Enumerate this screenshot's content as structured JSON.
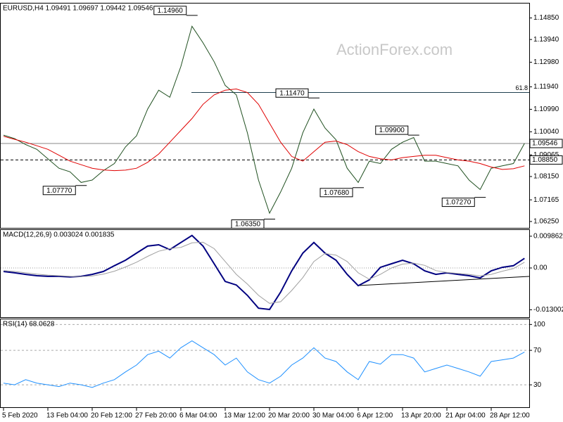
{
  "chart_data": [
    {
      "type": "line",
      "title": "EURUSD,H4  1.09491 1.09697 1.09442 1.09546",
      "watermark": "ActionForex.com",
      "ylim": [
        1.0598,
        1.1546
      ],
      "yticks": [
        {
          "value": 1.1485,
          "label": "1.14850"
        },
        {
          "value": 1.1394,
          "label": "1.13940"
        },
        {
          "value": 1.1298,
          "label": "1.12980"
        },
        {
          "value": 1.1194,
          "label": "1.11940"
        },
        {
          "value": 1.1099,
          "label": "1.10990"
        },
        {
          "value": 1.1004,
          "label": "1.10040"
        },
        1.09065,
        {
          "value": 1.0815,
          "label": "1.08150"
        },
        1.07165,
        {
          "value": 1.0625,
          "label": "1.06250"
        }
      ],
      "grid": false,
      "series": [
        {
          "color": "#1f4f1f",
          "values": [
            1.099,
            1.0975,
            1.095,
            1.093,
            1.089,
            1.085,
            1.0835,
            1.079,
            1.08,
            1.084,
            1.087,
            1.094,
            1.0987,
            1.11,
            1.118,
            1.115,
            1.128,
            1.145,
            1.138,
            1.13,
            1.12,
            1.116,
            1.1,
            1.08,
            1.066,
            1.075,
            1.085,
            1.1,
            1.11,
            1.102,
            1.097,
            1.085,
            1.079,
            1.088,
            1.087,
            1.093,
            1.096,
            1.098,
            1.088,
            1.088,
            1.087,
            1.086,
            1.08,
            1.076,
            1.085,
            1.086,
            1.087,
            1.0955
          ]
        },
        {
          "color": "#e00000",
          "values": [
            1.0985,
            1.0972,
            1.096,
            1.0945,
            1.093,
            1.0905,
            1.088,
            1.0865,
            1.085,
            1.0843,
            1.084,
            1.0842,
            1.085,
            1.0875,
            1.091,
            1.096,
            1.101,
            1.106,
            1.112,
            1.116,
            1.118,
            1.1185,
            1.117,
            1.112,
            1.104,
            1.096,
            1.09,
            1.088,
            1.092,
            1.096,
            1.0965,
            1.095,
            1.092,
            1.09,
            1.089,
            1.0885,
            1.0895,
            1.09,
            1.0905,
            1.0905,
            1.0895,
            1.0885,
            1.088,
            1.087,
            1.0855,
            1.0845,
            1.0848,
            1.086
          ]
        }
      ],
      "annotations": [
        {
          "at": 17,
          "value": 1.1496,
          "label": "1.14960"
        },
        {
          "at": 7,
          "value": 1.0777,
          "label": "1.07770"
        },
        {
          "at": 24,
          "value": 1.0635,
          "label": "1.06350"
        },
        {
          "at": 28,
          "value": 1.1147,
          "label": "1.11470"
        },
        {
          "at": 32,
          "value": 1.0768,
          "label": "1.07680"
        },
        {
          "at": 37,
          "value": 1.099,
          "label": "1.09900"
        },
        {
          "at": 43,
          "value": 1.0727,
          "label": "1.07270"
        }
      ],
      "levels": [
        {
          "value": 1.09546,
          "style": "solid"
        },
        {
          "value": 1.0885,
          "label": "1.08850",
          "style": "dashed"
        }
      ],
      "fib": {
        "level": 61.8,
        "price": 1.117
      }
    },
    {
      "type": "line",
      "title": "MACD(12,26,9) 0.003024 0.001835",
      "ylim": [
        -0.0153,
        0.0118
      ],
      "yticks": [
        0.009862,
        {
          "value": 0,
          "label": "0.00"
        },
        -0.013002
      ],
      "zero_line": true,
      "series": [
        {
          "color": "#000080",
          "values": [
            -0.0011,
            -0.0015,
            -0.002,
            -0.0024,
            -0.0026,
            -0.0026,
            -0.0028,
            -0.0026,
            -0.002,
            -0.0011,
            0.0007,
            0.0024,
            0.0046,
            0.0068,
            0.0072,
            0.0057,
            0.0079,
            0.0101,
            0.0068,
            0.0013,
            -0.0042,
            -0.0053,
            -0.0085,
            -0.0125,
            -0.0129,
            -0.0075,
            -0.0009,
            0.0046,
            0.0079,
            0.0046,
            0.0024,
            -0.002,
            -0.0055,
            -0.0037,
            0.0002,
            0.0013,
            0.0024,
            0.0013,
            -0.0009,
            -0.002,
            -0.0015,
            -0.002,
            -0.0024,
            -0.0031,
            -0.0009,
            0.0002,
            0.0007,
            0.003
          ]
        },
        {
          "color": "#a0a0a0",
          "values": [
            -0.0008,
            -0.0011,
            -0.0015,
            -0.0019,
            -0.0022,
            -0.0024,
            -0.0026,
            -0.0027,
            -0.0025,
            -0.0019,
            -0.001,
            0.0003,
            0.0018,
            0.0036,
            0.0052,
            0.006,
            0.0064,
            0.0078,
            0.008,
            0.006,
            0.002,
            -0.002,
            -0.005,
            -0.0085,
            -0.011,
            -0.0105,
            -0.007,
            -0.003,
            0.002,
            0.0045,
            0.004,
            0.002,
            -0.0015,
            -0.0035,
            -0.002,
            0,
            0.0012,
            0.0015,
            0.0008,
            -0.0008,
            -0.0014,
            -0.0017,
            -0.002,
            -0.0025,
            -0.002,
            -0.001,
            -0.0002,
            0.0018
          ]
        }
      ]
    },
    {
      "type": "line",
      "title": "RSI(14) 68.0628",
      "ylim": [
        4,
        106
      ],
      "yticks": [
        100,
        70,
        30
      ],
      "grid": "dashed",
      "categories": [
        "5 Feb 2020",
        null,
        null,
        null,
        "13 Feb 04:00",
        null,
        null,
        null,
        "20 Feb 12:00",
        null,
        null,
        null,
        "27 Feb 20:00",
        null,
        null,
        null,
        "6 Mar 04:00",
        null,
        null,
        null,
        "13 Mar 12:00",
        null,
        null,
        null,
        "20 Mar 20:00",
        null,
        null,
        null,
        "30 Mar 04:00",
        null,
        null,
        null,
        "6 Apr 12:00",
        null,
        null,
        null,
        "13 Apr 20:00",
        null,
        null,
        null,
        "21 Apr 04:00",
        null,
        null,
        null,
        "28 Apr 12:00",
        null,
        null,
        null
      ],
      "series": [
        {
          "color": "#1e90ff",
          "values": [
            32,
            30,
            36,
            32,
            30,
            28,
            32,
            30,
            27,
            32,
            36,
            45,
            53,
            65,
            69,
            61,
            73,
            81,
            73,
            65,
            53,
            61,
            45,
            36,
            32,
            40,
            53,
            61,
            73,
            61,
            57,
            45,
            36,
            57,
            54,
            65,
            65,
            61,
            45,
            49,
            53,
            49,
            45,
            40,
            57,
            59,
            61,
            68
          ]
        }
      ]
    }
  ]
}
